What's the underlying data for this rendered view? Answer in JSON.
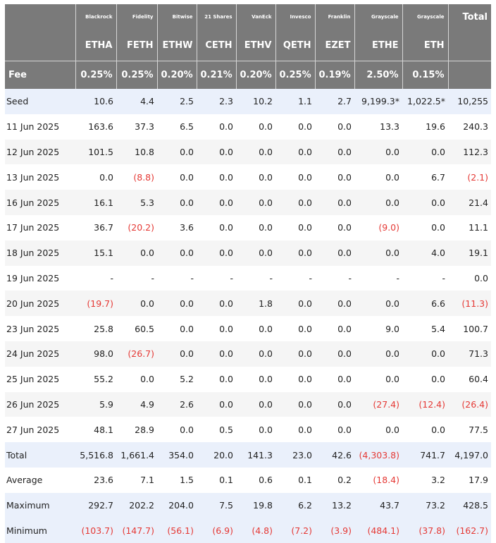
{
  "columns": [
    {
      "issuer": "Blackrock",
      "ticker": "ETHA",
      "fee": "0.25%"
    },
    {
      "issuer": "Fidelity",
      "ticker": "FETH",
      "fee": "0.25%"
    },
    {
      "issuer": "Bitwise",
      "ticker": "ETHW",
      "fee": "0.20%"
    },
    {
      "issuer": "21 Shares",
      "ticker": "CETH",
      "fee": "0.21%"
    },
    {
      "issuer": "VanEck",
      "ticker": "ETHV",
      "fee": "0.20%"
    },
    {
      "issuer": "Invesco",
      "ticker": "QETH",
      "fee": "0.25%"
    },
    {
      "issuer": "Franklin",
      "ticker": "EZET",
      "fee": "0.19%"
    },
    {
      "issuer": "Grayscale",
      "ticker": "ETHE",
      "fee": "2.50%"
    },
    {
      "issuer": "Grayscale",
      "ticker": "ETH",
      "fee": "0.15%"
    }
  ],
  "total_header": "Total",
  "fee_label": "Fee",
  "rows": [
    {
      "label": "Seed",
      "values": [
        "10.6",
        "4.4",
        "2.5",
        "2.3",
        "10.2",
        "1.1",
        "2.7",
        "9,199.3*",
        "1,022.5*",
        "10,255"
      ]
    },
    {
      "label": "11 Jun 2025",
      "values": [
        "163.6",
        "37.3",
        "6.5",
        "0.0",
        "0.0",
        "0.0",
        "0.0",
        "13.3",
        "19.6",
        "240.3"
      ]
    },
    {
      "label": "12 Jun 2025",
      "values": [
        "101.5",
        "10.8",
        "0.0",
        "0.0",
        "0.0",
        "0.0",
        "0.0",
        "0.0",
        "0.0",
        "112.3"
      ]
    },
    {
      "label": "13 Jun 2025",
      "values": [
        "0.0",
        "(8.8)",
        "0.0",
        "0.0",
        "0.0",
        "0.0",
        "0.0",
        "0.0",
        "6.7",
        "(2.1)"
      ]
    },
    {
      "label": "16 Jun 2025",
      "values": [
        "16.1",
        "5.3",
        "0.0",
        "0.0",
        "0.0",
        "0.0",
        "0.0",
        "0.0",
        "0.0",
        "21.4"
      ]
    },
    {
      "label": "17 Jun 2025",
      "values": [
        "36.7",
        "(20.2)",
        "3.6",
        "0.0",
        "0.0",
        "0.0",
        "0.0",
        "(9.0)",
        "0.0",
        "11.1"
      ]
    },
    {
      "label": "18 Jun 2025",
      "values": [
        "15.1",
        "0.0",
        "0.0",
        "0.0",
        "0.0",
        "0.0",
        "0.0",
        "0.0",
        "4.0",
        "19.1"
      ]
    },
    {
      "label": "19 Jun 2025",
      "values": [
        "-",
        "-",
        "-",
        "-",
        "-",
        "-",
        "-",
        "-",
        "-",
        "0.0"
      ]
    },
    {
      "label": "20 Jun 2025",
      "values": [
        "(19.7)",
        "0.0",
        "0.0",
        "0.0",
        "1.8",
        "0.0",
        "0.0",
        "0.0",
        "6.6",
        "(11.3)"
      ]
    },
    {
      "label": "23 Jun 2025",
      "values": [
        "25.8",
        "60.5",
        "0.0",
        "0.0",
        "0.0",
        "0.0",
        "0.0",
        "9.0",
        "5.4",
        "100.7"
      ]
    },
    {
      "label": "24 Jun 2025",
      "values": [
        "98.0",
        "(26.7)",
        "0.0",
        "0.0",
        "0.0",
        "0.0",
        "0.0",
        "0.0",
        "0.0",
        "71.3"
      ]
    },
    {
      "label": "25 Jun 2025",
      "values": [
        "55.2",
        "0.0",
        "5.2",
        "0.0",
        "0.0",
        "0.0",
        "0.0",
        "0.0",
        "0.0",
        "60.4"
      ]
    },
    {
      "label": "26 Jun 2025",
      "values": [
        "5.9",
        "4.9",
        "2.6",
        "0.0",
        "0.0",
        "0.0",
        "0.0",
        "(27.4)",
        "(12.4)",
        "(26.4)"
      ]
    },
    {
      "label": "27 Jun 2025",
      "values": [
        "48.1",
        "28.9",
        "0.0",
        "0.5",
        "0.0",
        "0.0",
        "0.0",
        "0.0",
        "0.0",
        "77.5"
      ]
    },
    {
      "label": "Total",
      "values": [
        "5,516.8",
        "1,661.4",
        "354.0",
        "20.0",
        "141.3",
        "23.0",
        "42.6",
        "(4,303.8)",
        "741.7",
        "4,197.0"
      ]
    },
    {
      "label": "Average",
      "values": [
        "23.6",
        "7.1",
        "1.5",
        "0.1",
        "0.6",
        "0.1",
        "0.2",
        "(18.4)",
        "3.2",
        "17.9"
      ]
    },
    {
      "label": "Maximum",
      "values": [
        "292.7",
        "202.2",
        "204.0",
        "7.5",
        "19.8",
        "6.2",
        "13.2",
        "43.7",
        "73.2",
        "428.5"
      ]
    },
    {
      "label": "Minimum",
      "values": [
        "(103.7)",
        "(147.7)",
        "(56.1)",
        "(6.9)",
        "(4.8)",
        "(7.2)",
        "(3.9)",
        "(484.1)",
        "(37.8)",
        "(162.7)"
      ]
    }
  ],
  "colors": {
    "header_bg": "#7a7a7a",
    "summary_row_bg": "#eaf0fb",
    "alt_row_bg": "#f5f5f5",
    "negative": "#e53935"
  }
}
